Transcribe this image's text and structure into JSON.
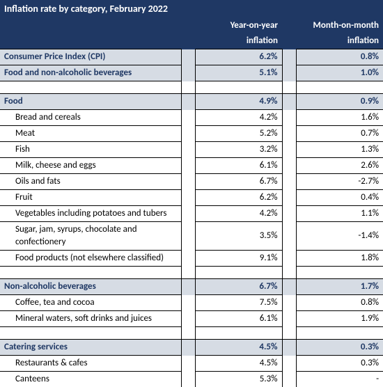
{
  "title": "Inflation rate by category, February 2022",
  "columns": {
    "c1a": "Year-on-year",
    "c1b": "inflation",
    "c2a": "Month-on-month",
    "c2b": "inflation"
  },
  "colors": {
    "header_bg": "#1f3864",
    "header_fg": "#ffffff",
    "section_bg": "#d6dce4",
    "section_fg": "#1f3864",
    "border": "#000000"
  },
  "top": {
    "label": "Consumer Price Index (CPI)",
    "yoy": "6.2%",
    "mom": "0.8%"
  },
  "group2": {
    "label": "Food and non-alcoholic beverages",
    "yoy": "5.1%",
    "mom": "1.0%"
  },
  "food": {
    "label": "Food",
    "yoy": "4.9%",
    "mom": "0.9%",
    "items": [
      {
        "label": "Bread and cereals",
        "yoy": "4.2%",
        "mom": "1.6%"
      },
      {
        "label": "Meat",
        "yoy": "5.2%",
        "mom": "0.7%"
      },
      {
        "label": "Fish",
        "yoy": "3.2%",
        "mom": "1.3%"
      },
      {
        "label": "Milk, cheese and eggs",
        "yoy": "6.1%",
        "mom": "2.6%"
      },
      {
        "label": "Oils and fats",
        "yoy": "6.7%",
        "mom": "-2.7%"
      },
      {
        "label": "Fruit",
        "yoy": "6.2%",
        "mom": "0.4%"
      },
      {
        "label": "Vegetables including potatoes and tubers",
        "yoy": "4.2%",
        "mom": "1.1%"
      },
      {
        "label": "Sugar, jam, syrups, chocolate and confectionery",
        "yoy": "3.5%",
        "mom": "-1.4%"
      },
      {
        "label": "Food products (not elsewhere classified)",
        "yoy": "9.1%",
        "mom": "1.8%"
      }
    ]
  },
  "bev": {
    "label": "Non-alcoholic beverages",
    "yoy": "6.7%",
    "mom": "1.7%",
    "items": [
      {
        "label": "Coffee, tea and cocoa",
        "yoy": "7.5%",
        "mom": "0.8%"
      },
      {
        "label": "Mineral waters, soft drinks and juices",
        "yoy": "6.1%",
        "mom": "1.9%"
      }
    ]
  },
  "catering": {
    "label": "Catering services",
    "yoy": "4.5%",
    "mom": "0.3%",
    "items": [
      {
        "label": "Restaurants & cafes",
        "yoy": "4.5%",
        "mom": "0.3%"
      },
      {
        "label": "Canteens",
        "yoy": "5.3%",
        "mom": "-"
      }
    ]
  }
}
